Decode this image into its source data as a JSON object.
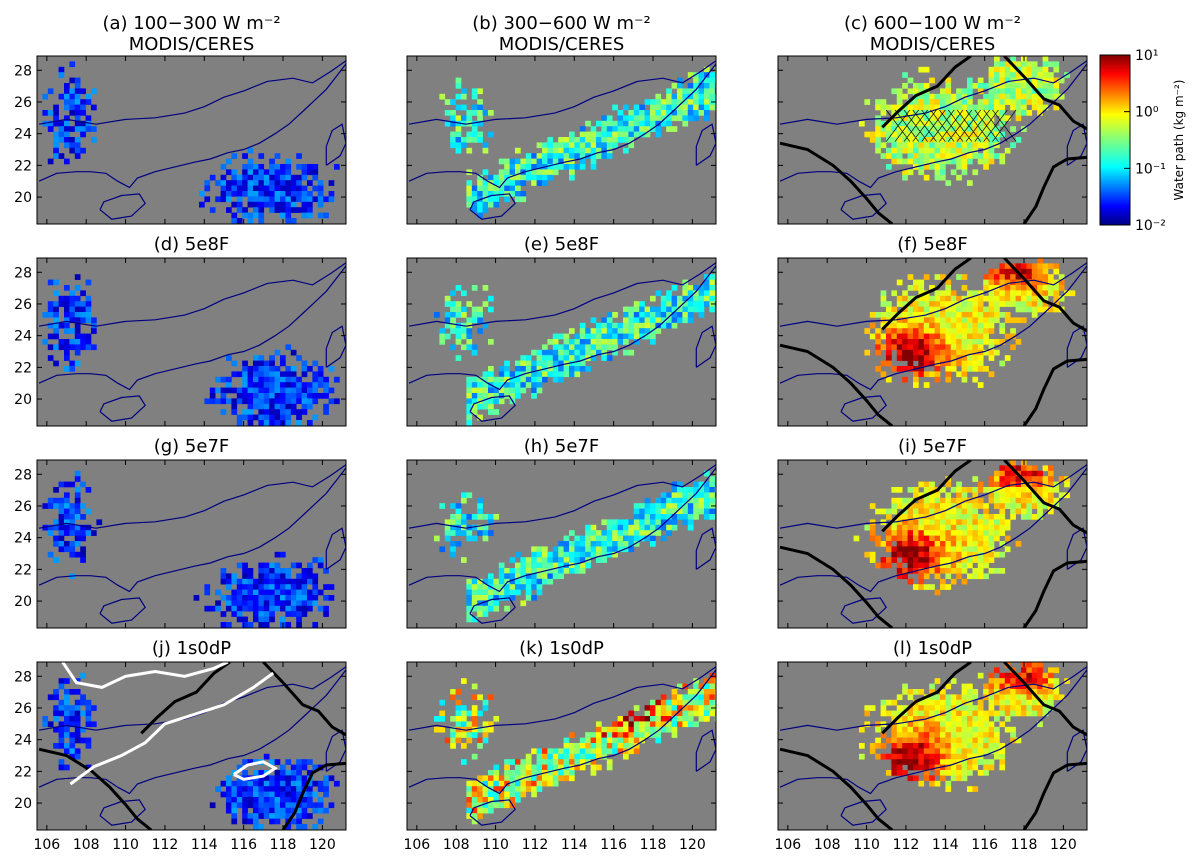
{
  "figure": {
    "colorbar": {
      "label": "Water path (kg m⁻²)",
      "scale": "log",
      "range": [
        0.01,
        10
      ],
      "tick_labels": [
        {
          "value": 10,
          "text": "10¹"
        },
        {
          "value": 1,
          "text": "10⁰"
        },
        {
          "value": 0.1,
          "text": "10⁻¹"
        },
        {
          "value": 0.01,
          "text": "10⁻²"
        }
      ]
    },
    "colors": {
      "background": "#808080",
      "coastline": "#000080",
      "contour_black": "#000000",
      "contour_white": "#ffffff"
    }
  },
  "chart_data": {
    "type": "heatmap",
    "layout": "4x3 grid of map panels",
    "x_ticks": [
      "106",
      "108",
      "110",
      "112",
      "114",
      "116",
      "118",
      "120"
    ],
    "y_ticks": [
      "20",
      "22",
      "24",
      "26",
      "28"
    ],
    "xlim": [
      105.5,
      121.2
    ],
    "ylim": [
      18.3,
      28.9
    ],
    "panels": [
      {
        "id": "a",
        "title_line1": "(a) 100−300 W m⁻²",
        "title_line2": "MODIS/CERES",
        "band": "low",
        "level": "low",
        "contours": "none"
      },
      {
        "id": "b",
        "title_line1": "(b) 300−600 W m⁻²",
        "title_line2": "MODIS/CERES",
        "band": "mid",
        "level": "mid",
        "contours": "none"
      },
      {
        "id": "c",
        "title_line1": "(c) 600−100 W m⁻²",
        "title_line2": "MODIS/CERES",
        "band": "high",
        "level": "high-obs",
        "contours": "black-hatched"
      },
      {
        "id": "d",
        "title_line1": "(d) 5e8F",
        "title_line2": "",
        "band": "low",
        "level": "low",
        "contours": "none"
      },
      {
        "id": "e",
        "title_line1": "(e) 5e8F",
        "title_line2": "",
        "band": "mid",
        "level": "mid",
        "contours": "none"
      },
      {
        "id": "f",
        "title_line1": "(f) 5e8F",
        "title_line2": "",
        "band": "high",
        "level": "high",
        "contours": "black"
      },
      {
        "id": "g",
        "title_line1": "(g) 5e7F",
        "title_line2": "",
        "band": "low",
        "level": "low",
        "contours": "none"
      },
      {
        "id": "h",
        "title_line1": "(h) 5e7F",
        "title_line2": "",
        "band": "mid",
        "level": "mid",
        "contours": "none"
      },
      {
        "id": "i",
        "title_line1": "(i) 5e7F",
        "title_line2": "",
        "band": "high",
        "level": "high",
        "contours": "black"
      },
      {
        "id": "j",
        "title_line1": "(j) 1s0dP",
        "title_line2": "",
        "band": "low",
        "level": "low",
        "contours": "black-white"
      },
      {
        "id": "k",
        "title_line1": "(k) 1s0dP",
        "title_line2": "",
        "band": "mid",
        "level": "mid-high",
        "contours": "none"
      },
      {
        "id": "l",
        "title_line1": "(l) 1s0dP",
        "title_line2": "",
        "band": "high",
        "level": "high",
        "contours": "black"
      }
    ]
  }
}
